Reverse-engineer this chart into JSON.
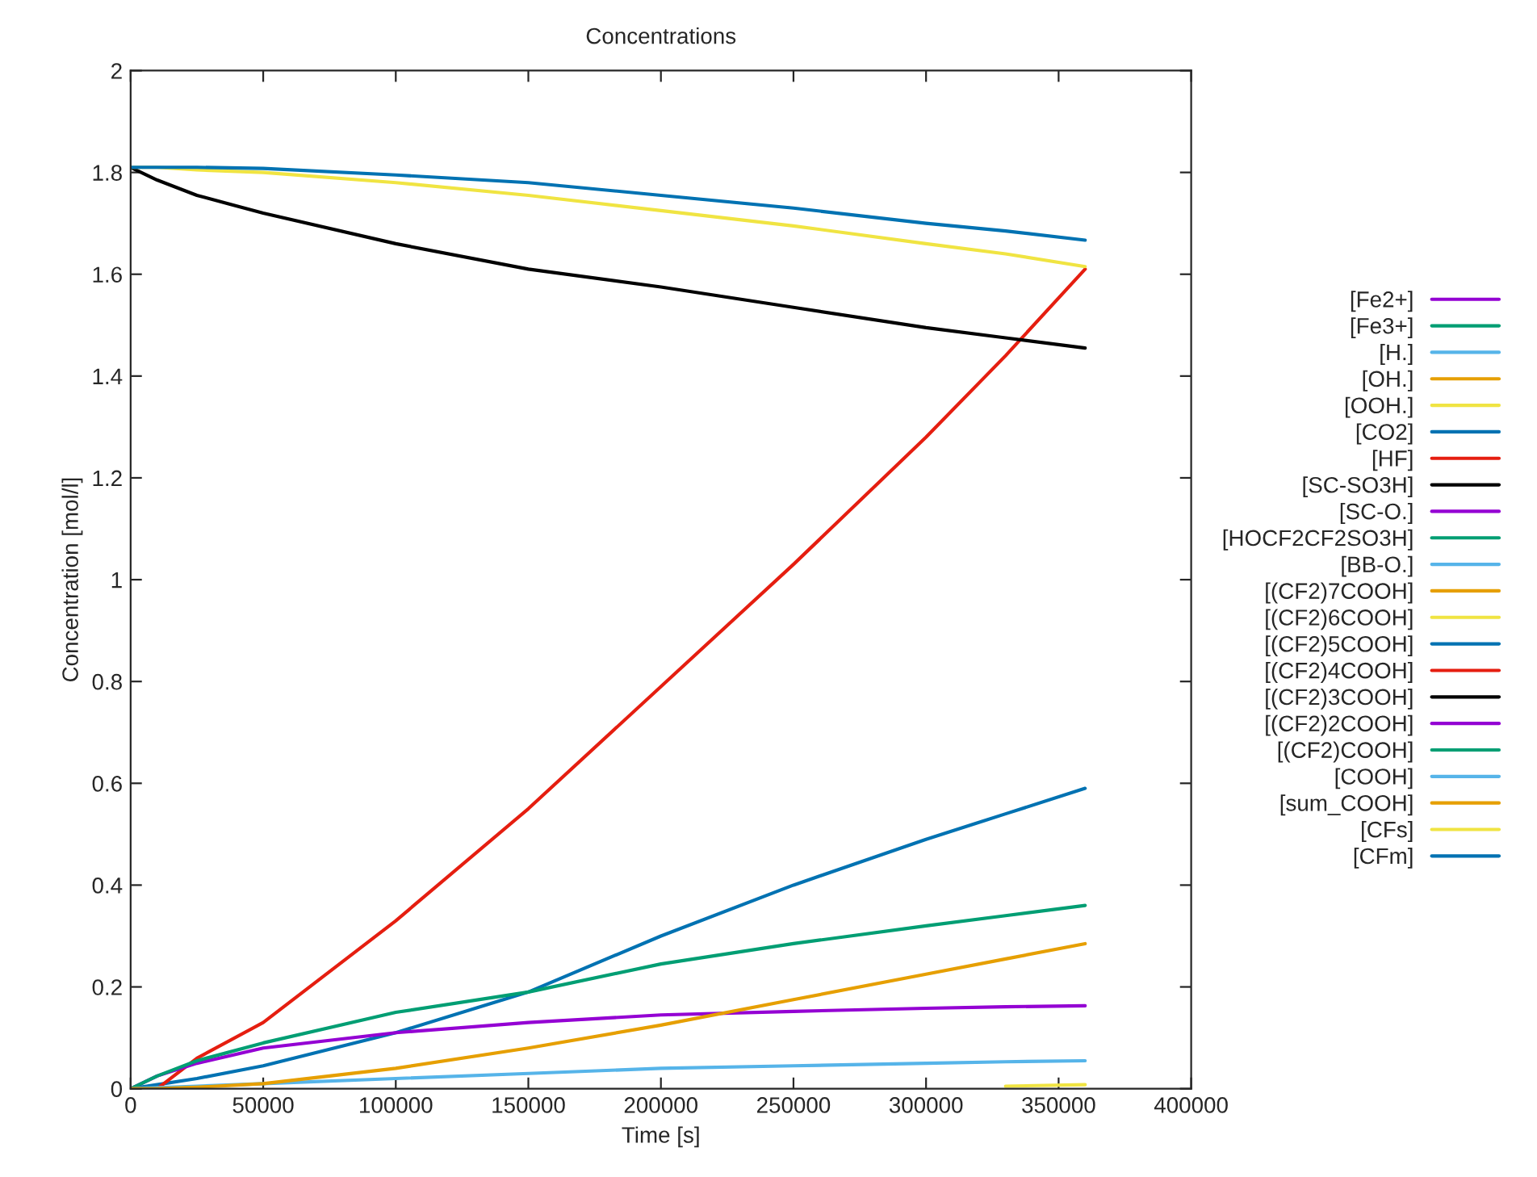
{
  "chart_data": {
    "type": "line",
    "title": "Concentrations",
    "xlabel": "Time [s]",
    "ylabel": "Concentration [mol/l]",
    "x": [
      0,
      10000,
      25000,
      50000,
      100000,
      150000,
      200000,
      250000,
      300000,
      330000,
      360000
    ],
    "xlim": [
      0,
      400000
    ],
    "xticks": [
      0,
      50000,
      100000,
      150000,
      200000,
      250000,
      300000,
      350000,
      400000
    ],
    "ylim": [
      0,
      2
    ],
    "yticks": [
      0,
      {
        "value": 0.2,
        "label": "0.2"
      },
      {
        "value": 0.4,
        "label": "0.4"
      },
      {
        "value": 0.6,
        "label": "0.6"
      },
      {
        "value": 0.8,
        "label": "0.8"
      },
      1,
      {
        "value": 1.2,
        "label": "1.2"
      },
      {
        "value": 1.4,
        "label": "1.4"
      },
      {
        "value": 1.6,
        "label": "1.6"
      },
      {
        "value": 1.8,
        "label": "1.8"
      },
      2
    ],
    "grid": false,
    "legend": "right",
    "marker": "none",
    "line_style": "solid",
    "series": [
      {
        "name": "[Fe2+]",
        "color": "#9400d3",
        "values": [
          null,
          null,
          null,
          null,
          null,
          null,
          null,
          null,
          null,
          null,
          null
        ]
      },
      {
        "name": "[Fe3+]",
        "color": "#009e73",
        "values": [
          null,
          null,
          null,
          null,
          null,
          null,
          null,
          null,
          null,
          null,
          null
        ]
      },
      {
        "name": "[H.]",
        "color": "#56b4e9",
        "values": [
          null,
          null,
          null,
          null,
          null,
          null,
          null,
          null,
          null,
          null,
          null
        ]
      },
      {
        "name": "[OH.]",
        "color": "#e69f00",
        "values": [
          null,
          null,
          null,
          null,
          null,
          null,
          null,
          null,
          null,
          null,
          null
        ]
      },
      {
        "name": "[OOH.]",
        "color": "#f0e442",
        "values": [
          null,
          null,
          null,
          null,
          null,
          null,
          null,
          null,
          null,
          null,
          null
        ]
      },
      {
        "name": "[CO2]",
        "color": "#0072b2",
        "values": [
          0,
          0.008,
          0.02,
          0.045,
          0.11,
          0.19,
          0.3,
          0.4,
          0.49,
          0.54,
          0.59
        ]
      },
      {
        "name": "[HF]",
        "color": "#e51e10",
        "values": [
          0,
          0,
          0.06,
          0.13,
          0.33,
          0.55,
          0.79,
          1.03,
          1.28,
          1.44,
          1.61
        ]
      },
      {
        "name": "[SC-SO3H]",
        "color": "#000000",
        "values": [
          1.81,
          1.785,
          1.755,
          1.72,
          1.66,
          1.61,
          1.575,
          1.535,
          1.495,
          1.475,
          1.455
        ]
      },
      {
        "name": "[SC-O.]",
        "color": "#9400d3",
        "values": [
          0,
          0.025,
          0.05,
          0.08,
          0.11,
          0.13,
          0.145,
          0.152,
          0.158,
          0.161,
          0.163
        ]
      },
      {
        "name": "[HOCF2CF2SO3H]",
        "color": "#009e73",
        "values": [
          0,
          0.025,
          0.055,
          0.09,
          0.15,
          0.19,
          0.245,
          0.285,
          0.32,
          0.34,
          0.36
        ]
      },
      {
        "name": "[BB-O.]",
        "color": "#56b4e9",
        "values": [
          null,
          null,
          null,
          null,
          null,
          null,
          null,
          null,
          null,
          null,
          null
        ]
      },
      {
        "name": "[(CF2)7COOH]",
        "color": "#e69f00",
        "values": [
          null,
          null,
          null,
          null,
          null,
          null,
          null,
          null,
          null,
          null,
          null
        ]
      },
      {
        "name": "[(CF2)6COOH]",
        "color": "#f0e442",
        "values": [
          null,
          null,
          null,
          null,
          null,
          null,
          null,
          null,
          null,
          0.005,
          0.008
        ]
      },
      {
        "name": "[(CF2)5COOH]",
        "color": "#0072b2",
        "values": [
          null,
          null,
          null,
          null,
          null,
          null,
          null,
          null,
          null,
          null,
          null
        ]
      },
      {
        "name": "[(CF2)4COOH]",
        "color": "#e51e10",
        "values": [
          null,
          null,
          null,
          null,
          null,
          null,
          null,
          null,
          null,
          null,
          null
        ]
      },
      {
        "name": "[(CF2)3COOH]",
        "color": "#000000",
        "values": [
          null,
          null,
          null,
          null,
          null,
          null,
          null,
          null,
          null,
          null,
          null
        ]
      },
      {
        "name": "[(CF2)2COOH]",
        "color": "#9400d3",
        "values": [
          null,
          null,
          null,
          null,
          null,
          null,
          null,
          null,
          null,
          null,
          null
        ]
      },
      {
        "name": "[(CF2)COOH]",
        "color": "#009e73",
        "values": [
          null,
          null,
          null,
          null,
          null,
          null,
          null,
          null,
          null,
          null,
          null
        ]
      },
      {
        "name": "[COOH]",
        "color": "#56b4e9",
        "values": [
          0,
          0.002,
          0.005,
          0.01,
          0.02,
          0.03,
          0.04,
          0.045,
          0.05,
          0.053,
          0.055
        ]
      },
      {
        "name": "[sum_COOH]",
        "color": "#e69f00",
        "values": [
          0,
          0,
          0.003,
          0.01,
          0.04,
          0.08,
          0.125,
          0.175,
          0.225,
          0.255,
          0.285
        ]
      },
      {
        "name": "[CFs]",
        "color": "#f0e442",
        "values": [
          1.81,
          1.81,
          1.805,
          1.8,
          1.78,
          1.755,
          1.725,
          1.695,
          1.66,
          1.64,
          1.615
        ]
      },
      {
        "name": "[CFm]",
        "color": "#0072b2",
        "values": [
          1.81,
          1.81,
          1.81,
          1.808,
          1.795,
          1.78,
          1.755,
          1.73,
          1.7,
          1.685,
          1.667
        ]
      }
    ]
  }
}
